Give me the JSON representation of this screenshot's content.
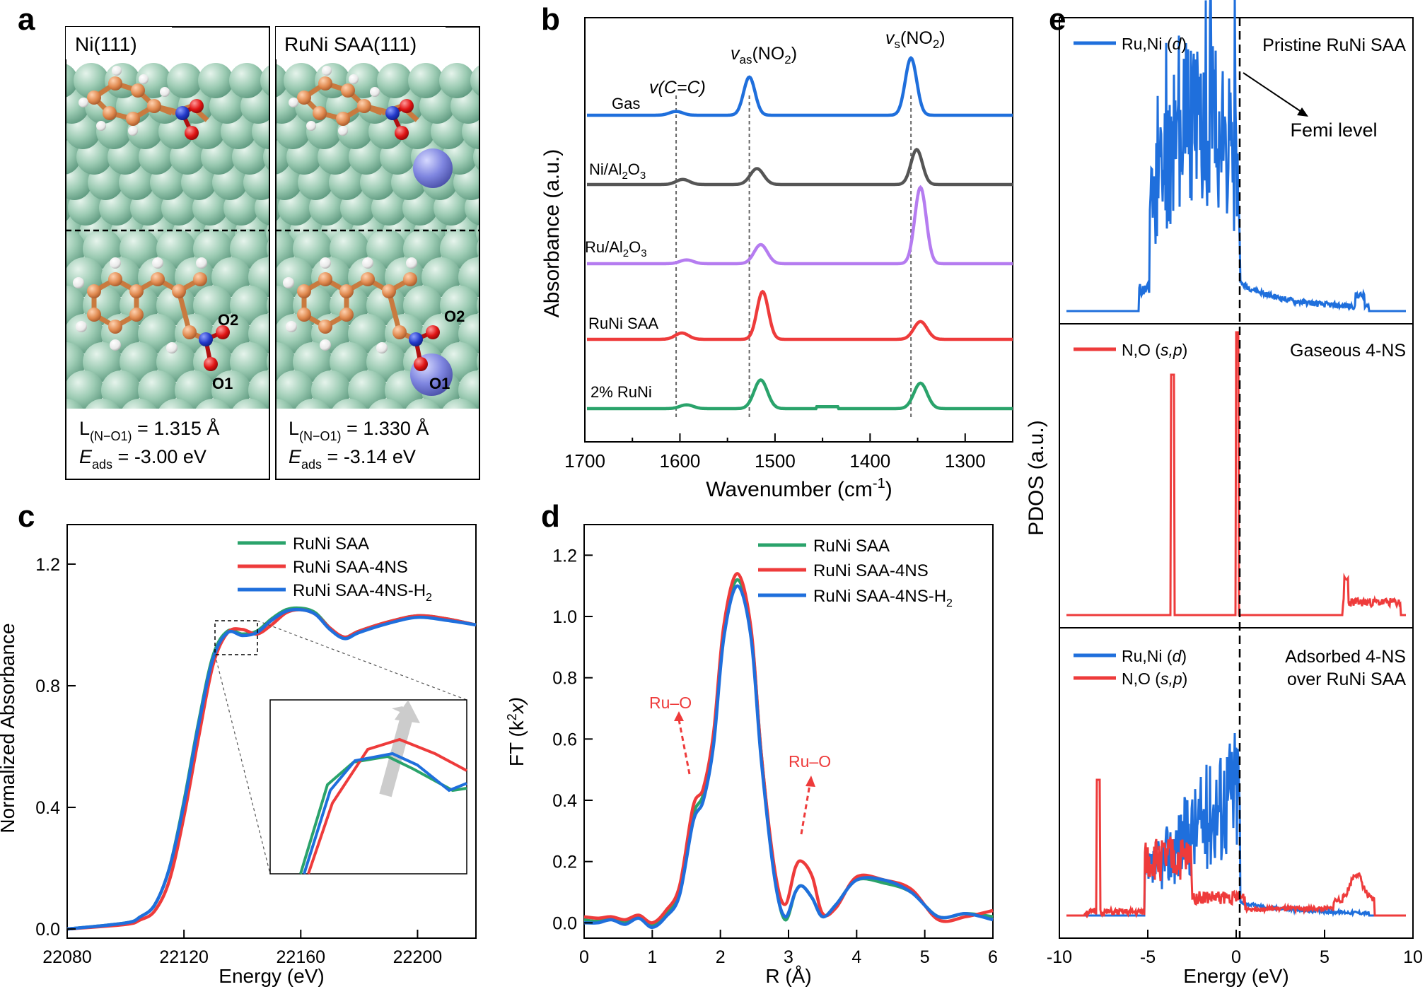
{
  "panel_labels": {
    "a": "a",
    "b": "b",
    "c": "c",
    "d": "d",
    "e": "e"
  },
  "panel_a": {
    "left": {
      "title": "Ni(111)",
      "o2": "O2",
      "o1": "O1",
      "bond_prefix": "L",
      "bond_sub": "(N−O1)",
      "bond_value": " = 1.315 Å",
      "e_prefix": "E",
      "e_sub": "ads",
      "e_value": " = -3.00 eV"
    },
    "right": {
      "title": "RuNi SAA(111)",
      "o2": "O2",
      "o1": "O1",
      "bond_prefix": "L",
      "bond_sub": "(N−O1)",
      "bond_value": " = 1.330 Å",
      "e_prefix": "E",
      "e_sub": "ads",
      "e_value": " = -3.14 eV"
    },
    "colors": {
      "ni": "#9ccbb3",
      "ru": "#7f86e0",
      "c": "#e08a50",
      "h": "#f4f4f4",
      "n": "#2239c9",
      "o": "#e01414"
    }
  },
  "chart_data": [
    {
      "panel": "b",
      "type": "line",
      "xlabel": "Wavenumber (cm",
      "xlabel_sup": "-1",
      "xlabel_tail": ")",
      "ylabel": "Absorbance (a.u.)",
      "xlim": [
        1700,
        1250
      ],
      "xticks": [
        "1700",
        "1600",
        "1500",
        "1400",
        "1300"
      ],
      "annotations": [
        "v(C=C)",
        "v",
        "as",
        "(NO",
        "2",
        ")",
        "v",
        "s",
        "(NO",
        "2",
        ")"
      ],
      "reference_lines": [
        1604,
        1527,
        1357
      ],
      "series": [
        {
          "name": "Gas",
          "color": "#1f6fdc",
          "peaks": [
            [
              1604,
              0.06
            ],
            [
              1527,
              0.6
            ],
            [
              1357,
              0.9
            ]
          ]
        },
        {
          "name": "Ni/Al2O3",
          "label_parts": [
            "Ni/Al",
            "2",
            "O",
            "3"
          ],
          "color": "#555555",
          "peaks": [
            [
              1597,
              0.08
            ],
            [
              1519,
              0.25
            ],
            [
              1351,
              0.55
            ]
          ]
        },
        {
          "name": "Ru/Al2O3",
          "label_parts": [
            "Ru/Al",
            "2",
            "O",
            "3"
          ],
          "color": "#b57cf0",
          "peaks": [
            [
              1593,
              0.06
            ],
            [
              1515,
              0.3
            ],
            [
              1347,
              1.2
            ]
          ]
        },
        {
          "name": "RuNi SAA",
          "color": "#ee3b3b",
          "peaks": [
            [
              1598,
              0.1
            ],
            [
              1513,
              0.75
            ],
            [
              1347,
              0.28
            ]
          ]
        },
        {
          "name": "2% RuNi",
          "color": "#2aa36b",
          "peaks": [
            [
              1593,
              0.06
            ],
            [
              1515,
              0.45
            ],
            [
              1347,
              0.4
            ]
          ]
        }
      ]
    },
    {
      "panel": "c",
      "type": "line",
      "xlabel": "Energy (eV)",
      "ylabel": "Normalized Absorbance",
      "xlim": [
        22080,
        22220
      ],
      "ylim": [
        -0.03,
        1.33
      ],
      "xticks": [
        "22080",
        "22120",
        "22160",
        "22200"
      ],
      "yticks": [
        "0.0",
        "0.4",
        "0.8",
        "1.2"
      ],
      "legend": [
        "RuNi SAA",
        "RuNi SAA-4NS",
        "RuNi SAA-4NS-H",
        "2"
      ],
      "series": [
        {
          "name": "RuNi SAA",
          "color": "#2aa36b",
          "x": [
            22080,
            22100,
            22105,
            22110,
            22115,
            22120,
            22125,
            22130,
            22135,
            22140,
            22145,
            22150,
            22155,
            22160,
            22165,
            22170,
            22175,
            22180,
            22190,
            22200,
            22210,
            22220
          ],
          "y": [
            0,
            0.02,
            0.04,
            0.08,
            0.2,
            0.42,
            0.68,
            0.9,
            0.98,
            0.97,
            0.98,
            1.02,
            1.05,
            1.055,
            1.04,
            0.99,
            0.96,
            0.98,
            1.01,
            1.03,
            1.02,
            1.0
          ]
        },
        {
          "name": "RuNi SAA-4NS",
          "color": "#ee3b3b",
          "x": [
            22080,
            22100,
            22105,
            22110,
            22115,
            22120,
            22125,
            22130,
            22135,
            22140,
            22145,
            22150,
            22155,
            22160,
            22165,
            22170,
            22175,
            22180,
            22190,
            22200,
            22210,
            22220
          ],
          "y": [
            0,
            0.015,
            0.03,
            0.06,
            0.16,
            0.37,
            0.63,
            0.87,
            0.975,
            0.985,
            0.97,
            1.0,
            1.04,
            1.05,
            1.035,
            0.99,
            0.96,
            0.98,
            1.01,
            1.03,
            1.02,
            1.0
          ]
        },
        {
          "name": "RuNi SAA-4NS-H2",
          "color": "#1f6fdc",
          "x": [
            22080,
            22100,
            22105,
            22110,
            22115,
            22120,
            22125,
            22130,
            22135,
            22140,
            22145,
            22150,
            22155,
            22160,
            22165,
            22170,
            22175,
            22180,
            22190,
            22200,
            22210,
            22220
          ],
          "y": [
            0,
            0.02,
            0.04,
            0.08,
            0.2,
            0.41,
            0.67,
            0.89,
            0.975,
            0.965,
            0.975,
            1.015,
            1.045,
            1.05,
            1.035,
            0.985,
            0.955,
            0.975,
            1.005,
            1.025,
            1.015,
            1.0
          ]
        }
      ]
    },
    {
      "panel": "d",
      "type": "line",
      "xlabel": "R (Å)",
      "ylabel": "FT (k",
      "ylabel_sup": "2",
      "ylabel_tail": "x)",
      "xlim": [
        0,
        6
      ],
      "ylim": [
        -0.05,
        1.3
      ],
      "xticks": [
        "0",
        "1",
        "2",
        "3",
        "4",
        "5",
        "6"
      ],
      "yticks": [
        "0.0",
        "0.2",
        "0.4",
        "0.6",
        "0.8",
        "1.0",
        "1.2"
      ],
      "legend": [
        "RuNi SAA",
        "RuNi SAA-4NS",
        "RuNi SAA-4NS-H",
        "2"
      ],
      "annotations": [
        "Ru–O",
        "Ru–O"
      ],
      "series": [
        {
          "name": "RuNi SAA",
          "color": "#2aa36b",
          "x": [
            0,
            0.2,
            0.4,
            0.6,
            0.8,
            1.0,
            1.2,
            1.4,
            1.6,
            1.75,
            1.9,
            2.05,
            2.25,
            2.45,
            2.6,
            2.8,
            2.95,
            3.1,
            3.2,
            3.35,
            3.5,
            3.7,
            4.0,
            4.4,
            4.8,
            5.2,
            5.6,
            6.0
          ],
          "y": [
            0.01,
            0.005,
            0.015,
            0.0,
            0.02,
            -0.01,
            0.03,
            0.1,
            0.35,
            0.42,
            0.6,
            0.95,
            1.12,
            0.95,
            0.55,
            0.15,
            0.01,
            0.1,
            0.12,
            0.08,
            0.02,
            0.06,
            0.14,
            0.13,
            0.1,
            0.02,
            0.03,
            0.02
          ]
        },
        {
          "name": "RuNi SAA-4NS",
          "color": "#ee3b3b",
          "x": [
            0,
            0.2,
            0.4,
            0.6,
            0.8,
            1.0,
            1.2,
            1.4,
            1.6,
            1.75,
            1.9,
            2.05,
            2.25,
            2.45,
            2.6,
            2.8,
            2.95,
            3.1,
            3.2,
            3.35,
            3.5,
            3.7,
            4.0,
            4.4,
            4.8,
            5.2,
            5.6,
            6.0
          ],
          "y": [
            0.02,
            0.015,
            0.02,
            0.01,
            0.025,
            0.0,
            0.04,
            0.12,
            0.38,
            0.44,
            0.62,
            0.97,
            1.14,
            0.96,
            0.55,
            0.17,
            0.06,
            0.18,
            0.2,
            0.15,
            0.03,
            0.05,
            0.15,
            0.14,
            0.11,
            0.01,
            0.02,
            0.04
          ]
        },
        {
          "name": "RuNi SAA-4NS-H2",
          "color": "#1f6fdc",
          "x": [
            0,
            0.2,
            0.4,
            0.6,
            0.8,
            1.0,
            1.2,
            1.4,
            1.6,
            1.75,
            1.9,
            2.05,
            2.25,
            2.45,
            2.6,
            2.8,
            2.95,
            3.1,
            3.2,
            3.35,
            3.5,
            3.7,
            4.0,
            4.4,
            4.8,
            5.2,
            5.6,
            6.0
          ],
          "y": [
            0.0,
            0.0,
            0.01,
            -0.005,
            0.015,
            -0.015,
            0.02,
            0.09,
            0.33,
            0.4,
            0.58,
            0.93,
            1.1,
            0.93,
            0.53,
            0.14,
            0.02,
            0.1,
            0.12,
            0.08,
            0.02,
            0.06,
            0.14,
            0.14,
            0.1,
            0.02,
            0.03,
            0.01
          ]
        }
      ]
    },
    {
      "panel": "e",
      "type": "line",
      "xlabel": "Energy (eV)",
      "ylabel": "PDOS (a.u.)",
      "xlim": [
        -10,
        10
      ],
      "xticks": [
        "-10",
        "-5",
        "0",
        "5",
        "10"
      ],
      "subpanels": [
        {
          "title": "Pristine RuNi SAA",
          "legend": [
            "Ru,Ni (",
            "d",
            ")"
          ],
          "annotation": "Femi level",
          "series": [
            {
              "name": "Ru,Ni (d)",
              "color": "#1f6fdc"
            }
          ]
        },
        {
          "title": "Gaseous 4-NS",
          "legend": [
            "N,O (",
            "s,p",
            ")"
          ],
          "series": [
            {
              "name": "N,O (s,p)",
              "color": "#ee3b3b"
            }
          ]
        },
        {
          "title": "Adsorbed 4-NS",
          "title2": "over RuNi SAA",
          "legend": [
            "Ru,Ni (",
            "d",
            ")",
            "N,O (",
            "s,p",
            ")"
          ],
          "series": [
            {
              "name": "Ru,Ni (d)",
              "color": "#1f6fdc"
            },
            {
              "name": "N,O (s,p)",
              "color": "#ee3b3b"
            }
          ]
        }
      ]
    }
  ]
}
